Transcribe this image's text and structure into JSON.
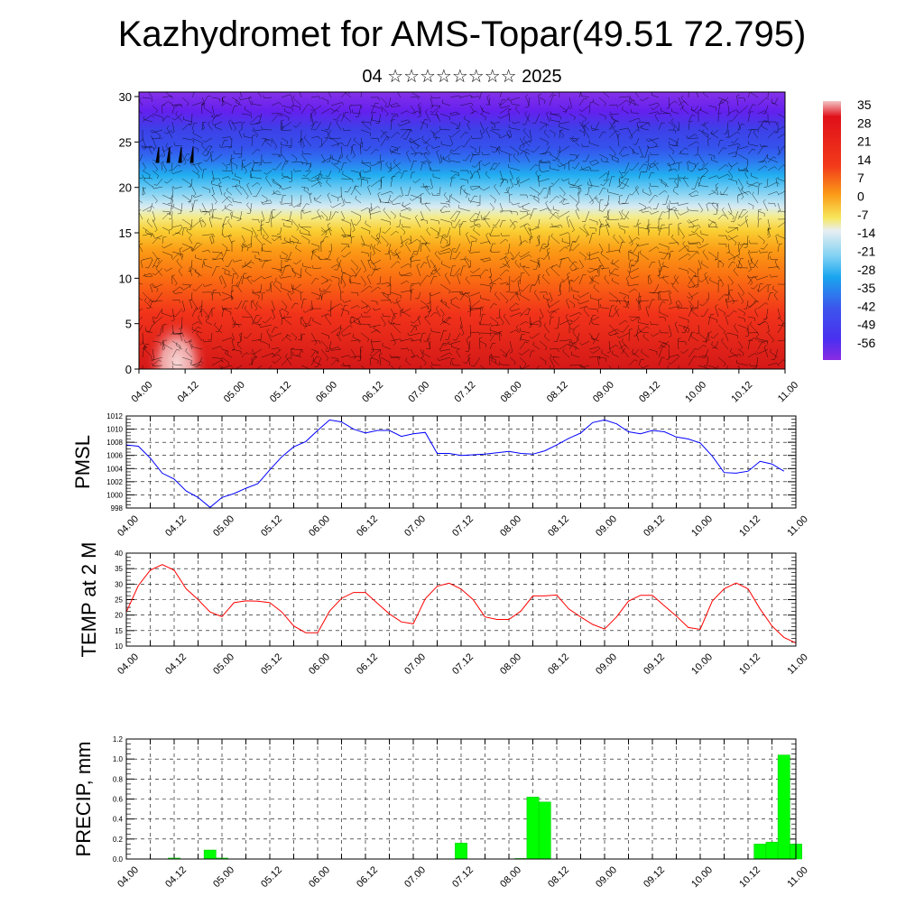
{
  "header": {
    "title": "Kazhydromet for AMS-Topar(49.51 72.795)",
    "subtitle": "04 ☆☆☆☆☆☆☆☆ 2025"
  },
  "time_labels": [
    "04.00",
    "04.12",
    "05.00",
    "05.12",
    "06.00",
    "06.12",
    "07.00",
    "07.12",
    "08.00",
    "08.12",
    "09.00",
    "09.12",
    "10.00",
    "10.12",
    "11.00"
  ],
  "chart_data": [
    {
      "type": "heatmap",
      "name": "upper-air-cross-section",
      "y_ticks": [
        0,
        5,
        10,
        15,
        20,
        25,
        30
      ],
      "ylim": [
        0,
        30.5
      ],
      "colorbar_labels": [
        "35",
        "28",
        "21",
        "14",
        "7",
        "0",
        "-7",
        "-14",
        "-21",
        "-28",
        "-35",
        "-42",
        "-49",
        "-56"
      ],
      "colors": {
        "hot": "#f2c4c4",
        "warm": "#e0101a",
        "orange": "#fa8a14",
        "yellow": "#f7e65a",
        "pale": "#cfe3ef",
        "cyan": "#21b4ec",
        "blue": "#3e60e9",
        "violet": "#6c1cf0",
        "purple": "#8a2be2"
      }
    },
    {
      "type": "line",
      "name": "PMSL",
      "ylabel": "PMSL",
      "ylim": [
        998,
        1012
      ],
      "y_ticks": [
        998,
        1000,
        1002,
        1004,
        1006,
        1008,
        1010,
        1012
      ],
      "color": "#0000ff",
      "x": [
        0,
        3,
        6,
        9,
        12,
        15,
        18,
        21,
        24,
        27,
        30,
        33,
        36,
        39,
        42,
        45,
        48,
        51,
        54,
        57,
        60,
        63,
        66,
        69,
        72,
        75,
        78,
        81,
        84,
        87,
        90,
        93,
        96,
        99,
        102,
        105,
        108,
        111,
        114,
        117,
        120,
        123,
        126,
        129,
        132,
        135,
        138,
        141,
        144,
        147,
        150,
        153,
        156,
        159,
        162,
        165,
        168
      ],
      "values": [
        1007.6,
        1007.4,
        1005.6,
        1003.3,
        1002.4,
        1000.6,
        999.6,
        998.1,
        999.6,
        1000.2,
        1001,
        1001.7,
        1003.8,
        1005.8,
        1007.3,
        1008.1,
        1009.8,
        1011.4,
        1011.1,
        1010,
        1009.4,
        1009.8,
        1009.8,
        1008.9,
        1009.3,
        1009.5,
        1006.3,
        1006.3,
        1006,
        1006.1,
        1006.2,
        1006.4,
        1006.6,
        1006.3,
        1006.2,
        1006.7,
        1007.6,
        1008.6,
        1009.4,
        1011,
        1011.4,
        1010.8,
        1009.6,
        1009.3,
        1009.8,
        1009.6,
        1008.8,
        1008.5,
        1007.9,
        1005.9,
        1003.4,
        1003.3,
        1003.6,
        1005.1,
        1004.7,
        1003.6,
        null
      ]
    },
    {
      "type": "line",
      "name": "TEMP at 2 M",
      "ylabel": "TEMP at 2 M",
      "ylim": [
        10,
        40
      ],
      "y_ticks": [
        10,
        15,
        20,
        25,
        30,
        35,
        40
      ],
      "color": "#ff0000",
      "x": [
        0,
        3,
        6,
        9,
        12,
        15,
        18,
        21,
        24,
        27,
        30,
        33,
        36,
        39,
        42,
        45,
        48,
        51,
        54,
        57,
        60,
        63,
        66,
        69,
        72,
        75,
        78,
        81,
        84,
        87,
        90,
        93,
        96,
        99,
        102,
        105,
        108,
        111,
        114,
        117,
        120,
        123,
        126,
        129,
        132,
        135,
        138,
        141,
        144,
        147,
        150,
        153,
        156,
        159,
        162,
        165,
        168
      ],
      "values": [
        21,
        29.5,
        34.5,
        36.3,
        34.5,
        28.5,
        25,
        21,
        19.5,
        24,
        24.6,
        24.5,
        24,
        21,
        16.5,
        14.3,
        14.3,
        21.3,
        25.4,
        27.3,
        27.3,
        23.8,
        20.4,
        17.8,
        17.2,
        25.3,
        29.3,
        30.3,
        28.4,
        25,
        19.4,
        18.6,
        18.6,
        21.3,
        26.2,
        26.2,
        26.5,
        22,
        19.4,
        17,
        15.5,
        19.4,
        24.5,
        26.4,
        26.4,
        23,
        19.7,
        16,
        15.4,
        24.5,
        28.5,
        30.4,
        28.5,
        22,
        16.5,
        12.8,
        11
      ]
    },
    {
      "type": "bar",
      "name": "PRECIP, mm",
      "ylabel": "PRECIP, mm",
      "ylim": [
        0,
        1.2
      ],
      "y_ticks": [
        "0.0",
        "0.2",
        "0.4",
        "0.6",
        "0.8",
        "1.0",
        "1.2"
      ],
      "color": "#00ff00",
      "x": [
        3,
        6,
        9,
        12,
        15,
        18,
        21,
        24,
        27,
        30,
        33,
        36,
        39,
        42,
        45,
        48,
        51,
        54,
        57,
        60,
        63,
        66,
        69,
        72,
        75,
        78,
        81,
        84,
        87,
        90,
        93,
        96,
        99,
        102,
        105,
        108,
        111,
        114,
        117,
        120,
        123,
        126,
        129,
        132,
        135,
        138,
        141,
        144,
        147,
        150,
        153,
        156,
        159,
        162,
        165,
        168
      ],
      "values": [
        0,
        0,
        0,
        0.01,
        0,
        0,
        0.09,
        0.01,
        0,
        0,
        0,
        0,
        0,
        0,
        0,
        0,
        0,
        0,
        0,
        0,
        0,
        0,
        0,
        0,
        0,
        0,
        0,
        0.16,
        0,
        0,
        0,
        0,
        0.005,
        0.62,
        0.57,
        0,
        0,
        0,
        0,
        0,
        0,
        0,
        0,
        0,
        0,
        0,
        0,
        0,
        0,
        0,
        0,
        0,
        0.15,
        0.17,
        1.04,
        0.15
      ]
    }
  ]
}
